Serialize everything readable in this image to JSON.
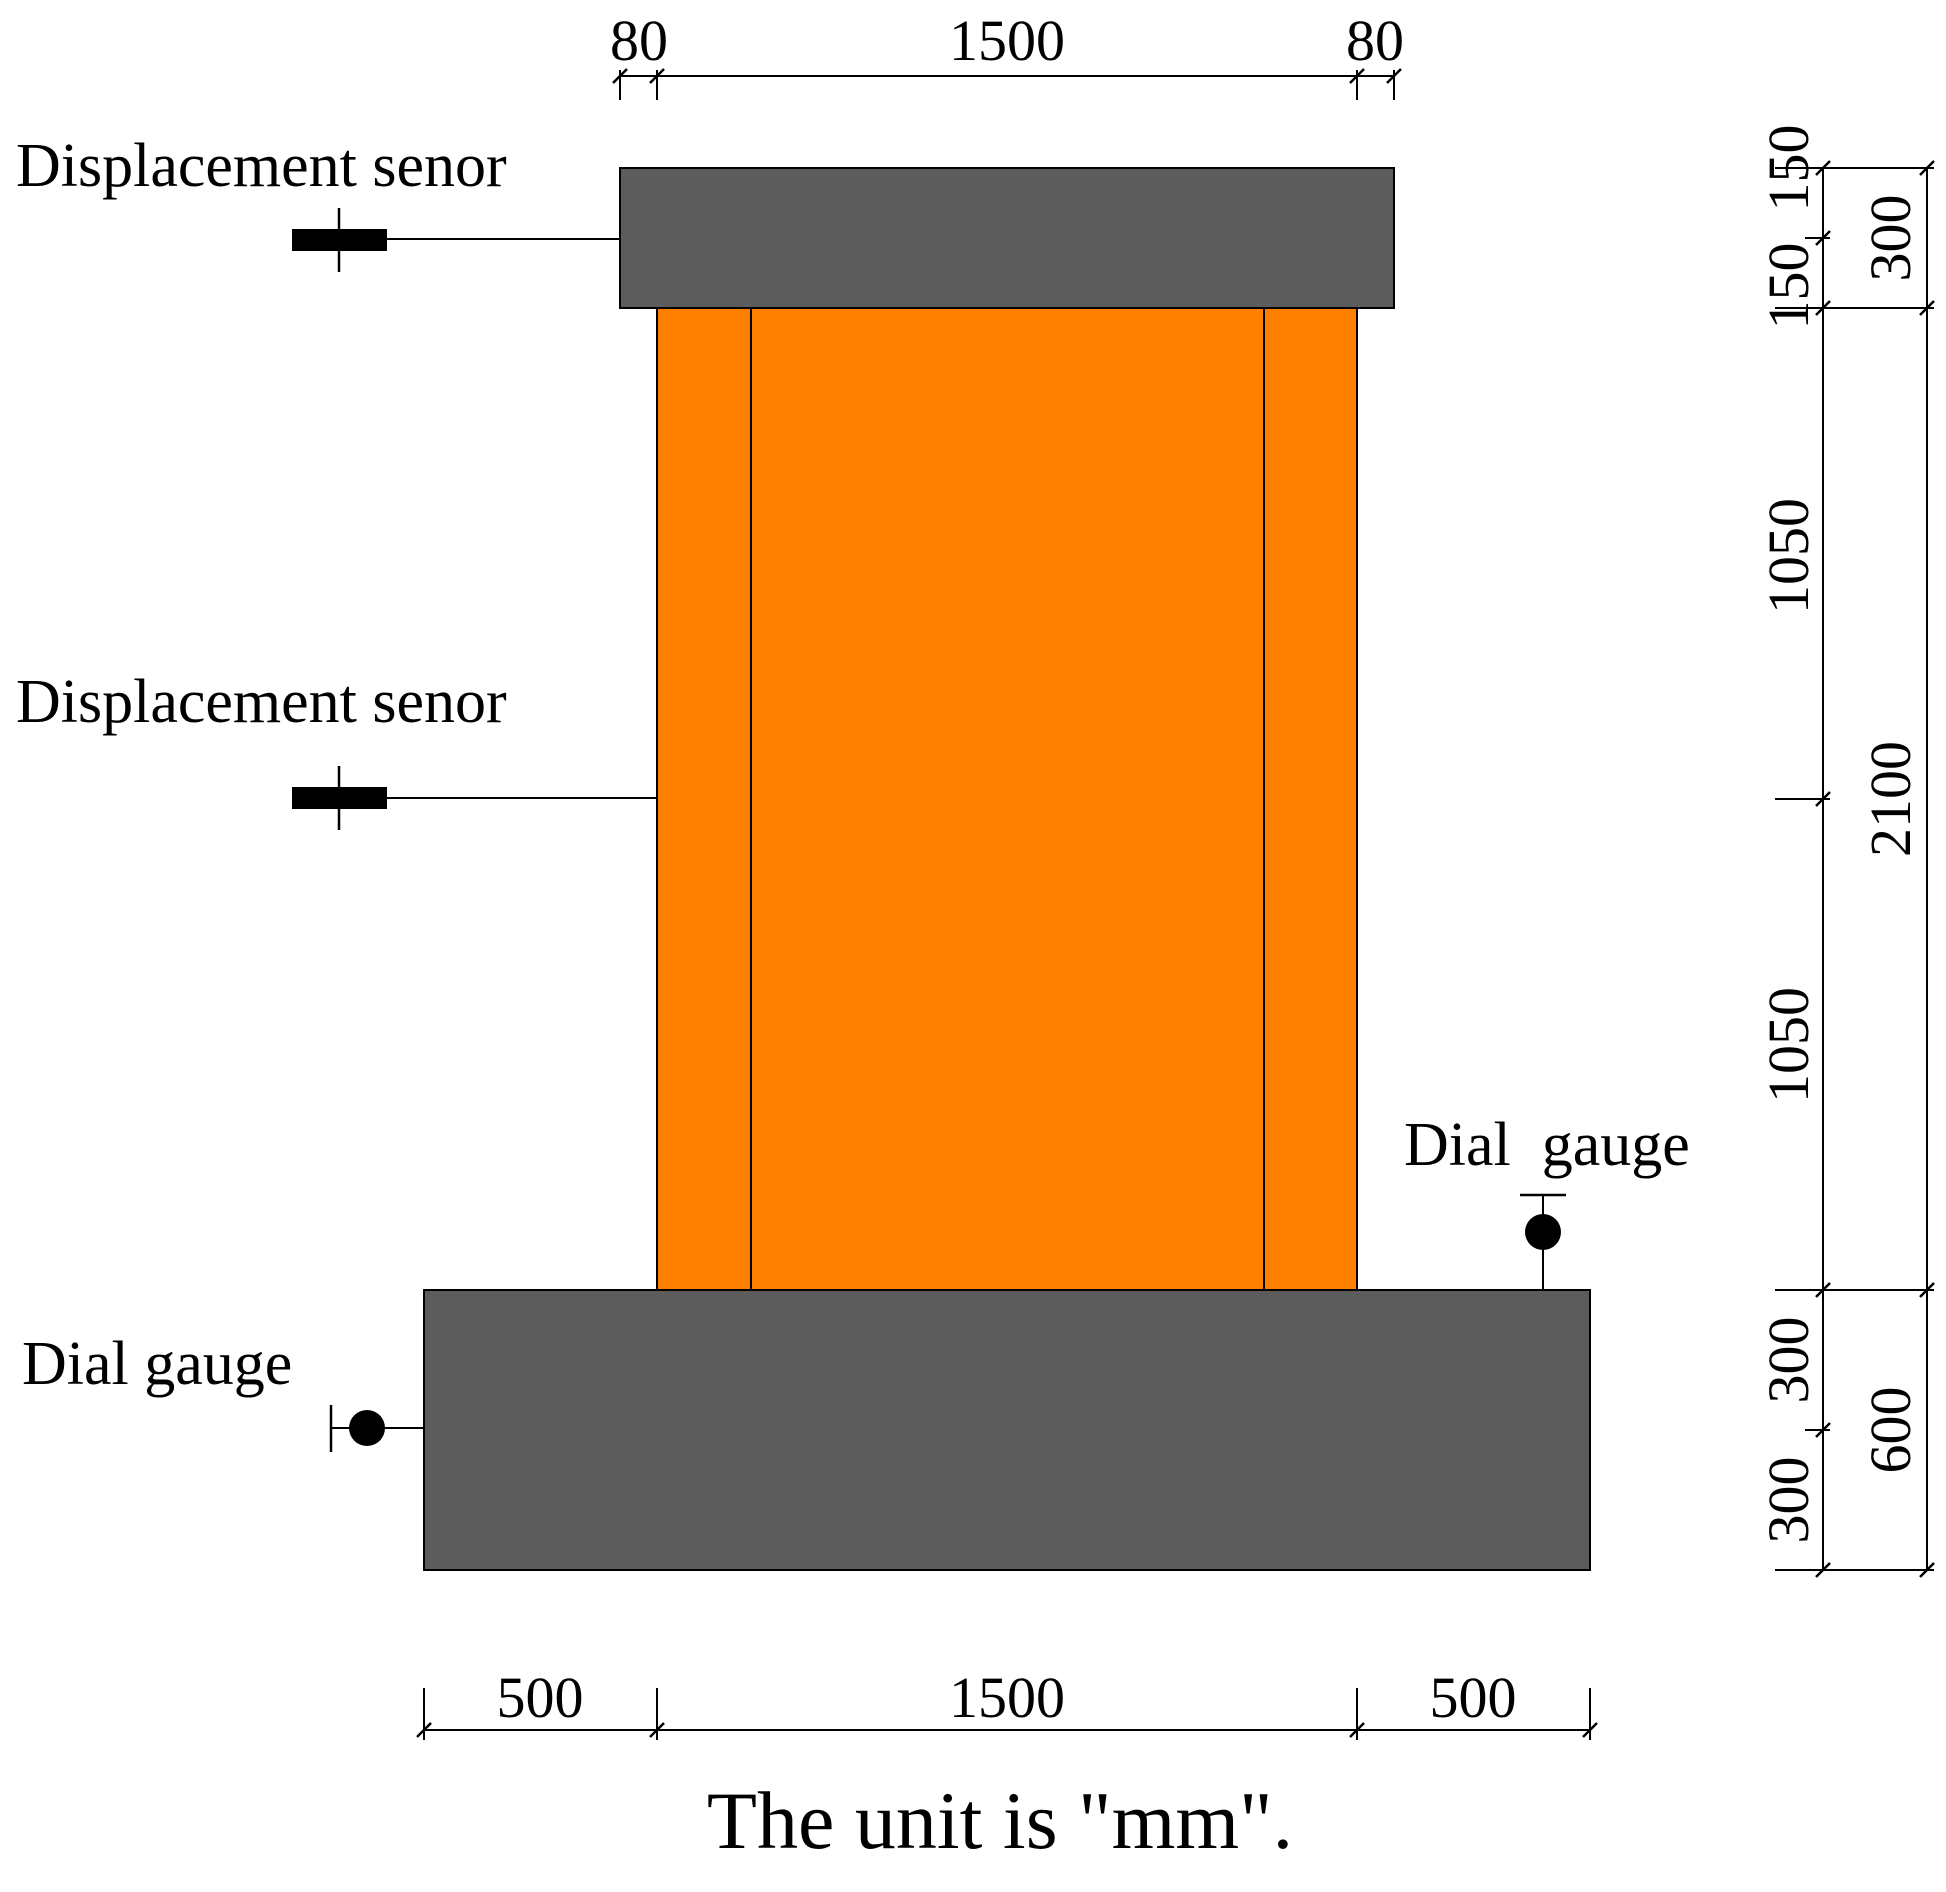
{
  "colors": {
    "beam": "#5c5c5c",
    "wall": "#ff7f00",
    "line": "#000000",
    "background": "#ffffff"
  },
  "labels": {
    "sensor_top": "Displacement senor",
    "sensor_mid": "Displacement senor",
    "dial_right": "Dial  gauge",
    "dial_left": "Dial gauge",
    "unit_note": "The unit is \"mm\"."
  },
  "dimensions": {
    "top": {
      "left": "80",
      "middle": "1500",
      "right": "80"
    },
    "bottom": {
      "left": "500",
      "middle": "1500",
      "right": "500"
    },
    "right_inner": {
      "top_beam_upper": "150",
      "top_beam_lower": "150",
      "wall_upper": "1050",
      "wall_lower": "1050",
      "base_upper": "300",
      "base_lower": "300"
    },
    "right_outer": {
      "top_beam": "300",
      "wall": "2100",
      "base": "600"
    }
  },
  "icons": {
    "sensor": "displacement-sensor-icon",
    "dial": "dial-gauge-icon"
  }
}
